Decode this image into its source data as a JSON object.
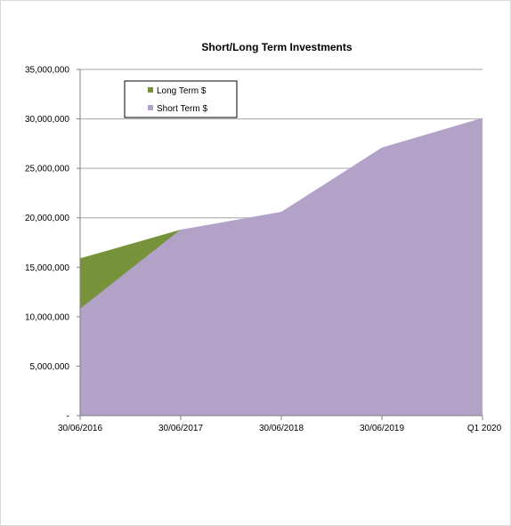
{
  "chart_data": {
    "type": "area",
    "stacked": true,
    "title": "Short/Long Term Investments",
    "xlabel": "",
    "ylabel": "",
    "categories": [
      "30/06/2016",
      "30/06/2017",
      "30/06/2018",
      "30/06/2019",
      "Q1 2020"
    ],
    "series": [
      {
        "name": "Short Term $",
        "values": [
          10800000,
          18800000,
          20600000,
          27100000,
          30100000
        ],
        "color": "#b3a2c7"
      },
      {
        "name": "Long Term $",
        "values": [
          5100000,
          0,
          0,
          0,
          0
        ],
        "color": "#76933c"
      }
    ],
    "ylim": [
      0,
      35000000
    ],
    "y_ticks": [
      0,
      5000000,
      10000000,
      15000000,
      20000000,
      25000000,
      30000000,
      35000000
    ],
    "y_tick_labels": [
      "-",
      "5,000,000",
      "10,000,000",
      "15,000,000",
      "20,000,000",
      "25,000,000",
      "30,000,000",
      "35,000,000"
    ],
    "legend": {
      "position": "top-left",
      "entries": [
        {
          "name": "Long Term $",
          "color": "#76933c"
        },
        {
          "name": "Short Term $",
          "color": "#b3a2c7"
        }
      ]
    },
    "grid": {
      "horizontal": true,
      "vertical": false,
      "color": "#a6a6a6"
    }
  }
}
